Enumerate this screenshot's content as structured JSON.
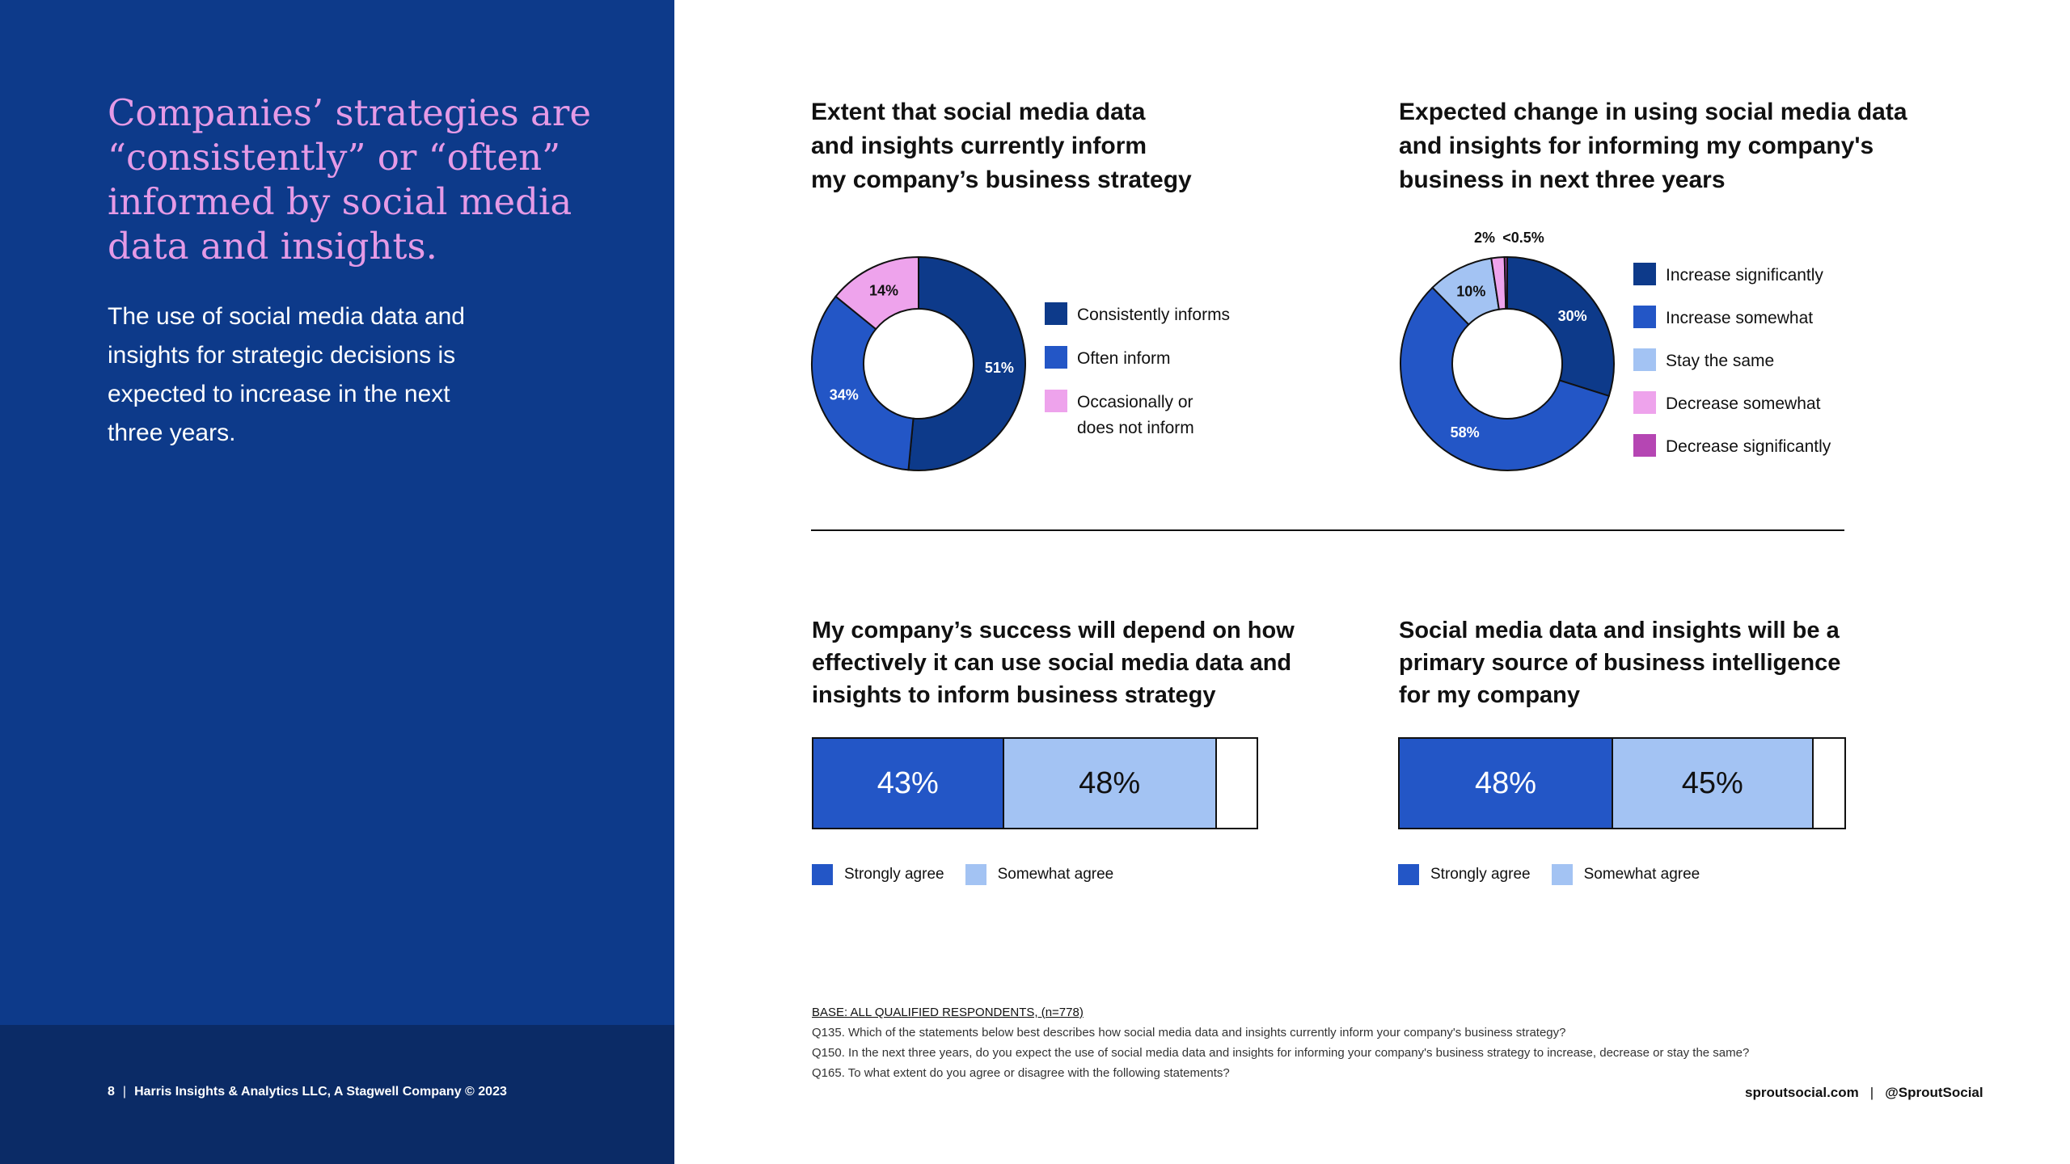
{
  "left": {
    "headline": "Companies’ strategies are\n“consistently” or “often”\ninformed by social media\ndata and insights.",
    "body": "The use of social media data and\ninsights for strategic decisions is\nexpected to increase in the next\nthree years.",
    "footer_page": "8",
    "footer_sep": "|",
    "footer_company": "Harris Insights & Analytics LLC, A Stagwell Company © 2023"
  },
  "colors": {
    "dark_blue": "#0d3a8a",
    "mid_blue": "#2356c6",
    "light_blue": "#a3c3f3",
    "light_pink": "#eea3ec",
    "magenta": "#b546b3"
  },
  "chart_data": [
    {
      "type": "pie",
      "title": "Extent that social media data\nand insights currently inform\nmy company’s business strategy",
      "categories": [
        "Consistently informs",
        "Often inform",
        "Occasionally or\ndoes not inform"
      ],
      "values": [
        51,
        34,
        14
      ],
      "labels": [
        "51%",
        "34%",
        "14%"
      ],
      "colors": [
        "#0d3a8a",
        "#2356c6",
        "#eea3ec"
      ],
      "hole": "donut"
    },
    {
      "type": "pie",
      "title": "Expected change in using social media data\nand insights for informing my company's\nbusiness in next three years",
      "categories": [
        "Increase significantly",
        "Increase somewhat",
        "Stay the same",
        "Decrease somewhat",
        "Decrease significantly"
      ],
      "values": [
        30,
        58,
        10,
        2,
        0.4
      ],
      "labels": [
        "30%",
        "58%",
        "10%",
        "2%",
        "<0.5%"
      ],
      "colors": [
        "#0d3a8a",
        "#2356c6",
        "#a3c3f3",
        "#eea3ec",
        "#b546b3"
      ],
      "hole": "donut"
    },
    {
      "type": "bar",
      "orientation": "horizontal-stacked",
      "title": "My company’s success will depend on how\neffectively it can use social media data and\ninsights to inform business strategy",
      "series": [
        {
          "name": "Strongly agree",
          "values": [
            43
          ],
          "label": "43%"
        },
        {
          "name": "Somewhat agree",
          "values": [
            48
          ],
          "label": "48%"
        }
      ],
      "total": 100
    },
    {
      "type": "bar",
      "orientation": "horizontal-stacked",
      "title": "Social media data and insights will be a\nprimary source of business intelligence\nfor my company",
      "series": [
        {
          "name": "Strongly agree",
          "values": [
            48
          ],
          "label": "48%"
        },
        {
          "name": "Somewhat agree",
          "values": [
            45
          ],
          "label": "45%"
        }
      ],
      "total": 100
    }
  ],
  "notes": {
    "base": "BASE: ALL QUALIFIED RESPONDENTS, (n=778)",
    "q135": "Q135. Which of the statements below best describes how social media data and insights currently inform your company's business strategy?",
    "q150": "Q150. In the next three years, do you expect the use of social media data and insights for informing your company's business strategy to increase, decrease or stay the same?",
    "q165": "Q165. To what extent do you agree or disagree with the following statements?"
  },
  "site_footer": {
    "site": "sproutsocial.com",
    "sep": "|",
    "handle": "@SproutSocial"
  }
}
